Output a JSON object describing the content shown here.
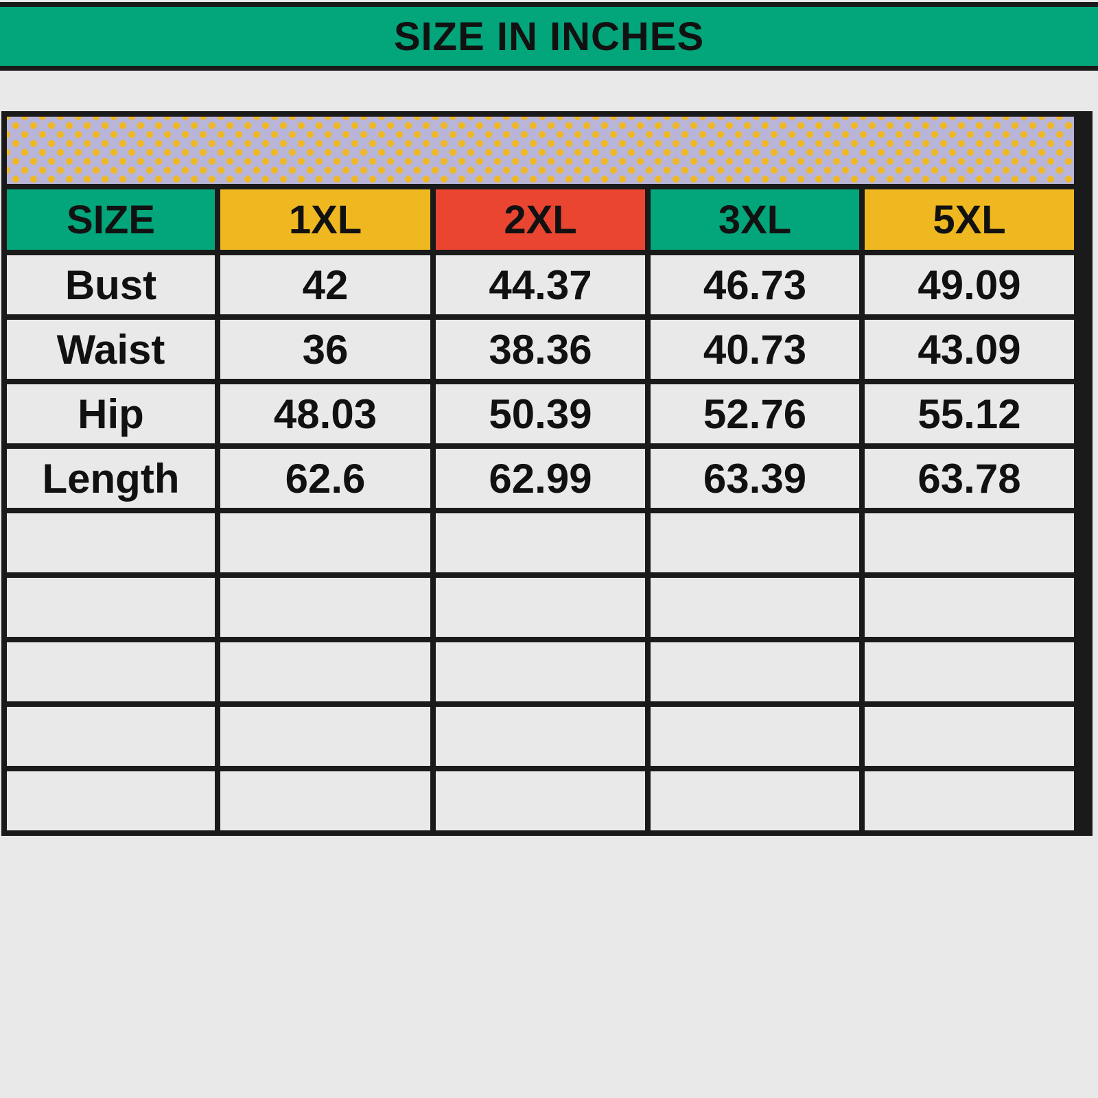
{
  "title": "SIZE IN INCHES",
  "colors": {
    "title_bg": "#03a57a",
    "band_bg": "#b9b5d9",
    "band_dots": "#efb820"
  },
  "headers": [
    {
      "label": "SIZE",
      "color": "#03a57a"
    },
    {
      "label": "1XL",
      "color": "#efb820"
    },
    {
      "label": "2XL",
      "color": "#e94530"
    },
    {
      "label": "3XL",
      "color": "#03a57a"
    },
    {
      "label": "5XL",
      "color": "#efb820"
    }
  ],
  "rows": [
    [
      "Bust",
      "42",
      "44.37",
      "46.73",
      "49.09"
    ],
    [
      "Waist",
      "36",
      "38.36",
      "40.73",
      "43.09"
    ],
    [
      "Hip",
      "48.03",
      "50.39",
      "52.76",
      "55.12"
    ],
    [
      "Length",
      "62.6",
      "62.99",
      "63.39",
      "63.78"
    ],
    [
      "",
      "",
      "",
      "",
      ""
    ],
    [
      "",
      "",
      "",
      "",
      ""
    ],
    [
      "",
      "",
      "",
      "",
      ""
    ],
    [
      "",
      "",
      "",
      "",
      ""
    ],
    [
      "",
      "",
      "",
      "",
      ""
    ]
  ]
}
